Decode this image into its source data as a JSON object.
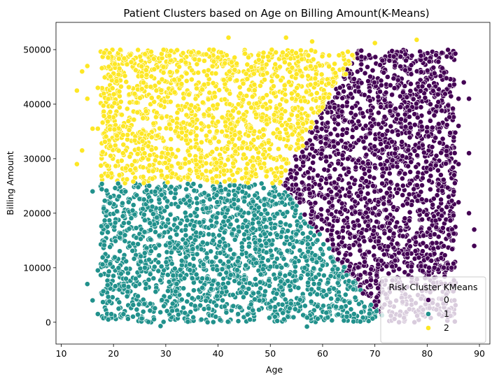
{
  "chart_data": {
    "type": "scatter",
    "title": "Patient Clusters based on Age on Billing Amount(K-Means)",
    "xlabel": "Age",
    "ylabel": "Billing Amount",
    "xlim": [
      9,
      92
    ],
    "ylim": [
      -4000,
      55000
    ],
    "x_ticks": [
      10,
      20,
      30,
      40,
      50,
      60,
      70,
      80,
      90
    ],
    "y_ticks": [
      0,
      10000,
      20000,
      30000,
      40000,
      50000
    ],
    "grid": false,
    "legend": {
      "title": "Risk Cluster KMeans",
      "placement": "lower-right",
      "entries": [
        "0",
        "1",
        "2"
      ]
    },
    "series": [
      {
        "name": "0",
        "color": "#440154",
        "region": {
          "x_range": [
            52,
            85
          ],
          "y_range": [
            2000,
            50000
          ],
          "boundary_points": [
            [
              52,
              26000
            ],
            [
              58,
              31000
            ],
            [
              63,
              40000
            ],
            [
              67,
              50000
            ],
            [
              60,
              25000
            ],
            [
              62,
              15000
            ],
            [
              68,
              8000
            ],
            [
              72,
              2000
            ]
          ]
        }
      },
      {
        "name": "1",
        "color": "#21918c",
        "region": {
          "x_range": [
            18,
            72
          ],
          "y_range": [
            0,
            25500
          ]
        }
      },
      {
        "name": "2",
        "color": "#fde725",
        "region": {
          "x_range": [
            18,
            67
          ],
          "y_range": [
            25500,
            51000
          ]
        }
      }
    ],
    "outliers": {
      "0": [
        [
          85,
          15000
        ],
        [
          88,
          20000
        ],
        [
          88,
          31000
        ],
        [
          89,
          17000
        ],
        [
          89,
          14000
        ],
        [
          86,
          36000
        ],
        [
          87,
          44000
        ],
        [
          88,
          41000
        ],
        [
          86,
          41000
        ],
        [
          86,
          29000
        ],
        [
          86,
          22000
        ]
      ],
      "1": [
        [
          15,
          7000
        ],
        [
          16,
          4000
        ],
        [
          16,
          24000
        ],
        [
          17,
          9500
        ],
        [
          17,
          1500
        ],
        [
          19,
          500
        ],
        [
          29,
          -700
        ],
        [
          57,
          -800
        ],
        [
          66,
          1500
        ]
      ],
      "2": [
        [
          13,
          42500
        ],
        [
          13,
          29000
        ],
        [
          14,
          46000
        ],
        [
          14,
          31500
        ],
        [
          15,
          47000
        ],
        [
          15,
          41000
        ],
        [
          16,
          35500
        ],
        [
          17,
          43000
        ],
        [
          17,
          35500
        ],
        [
          42,
          52200
        ],
        [
          53,
          52200
        ],
        [
          58,
          51500
        ],
        [
          70,
          51200
        ],
        [
          78,
          51800
        ]
      ]
    }
  }
}
